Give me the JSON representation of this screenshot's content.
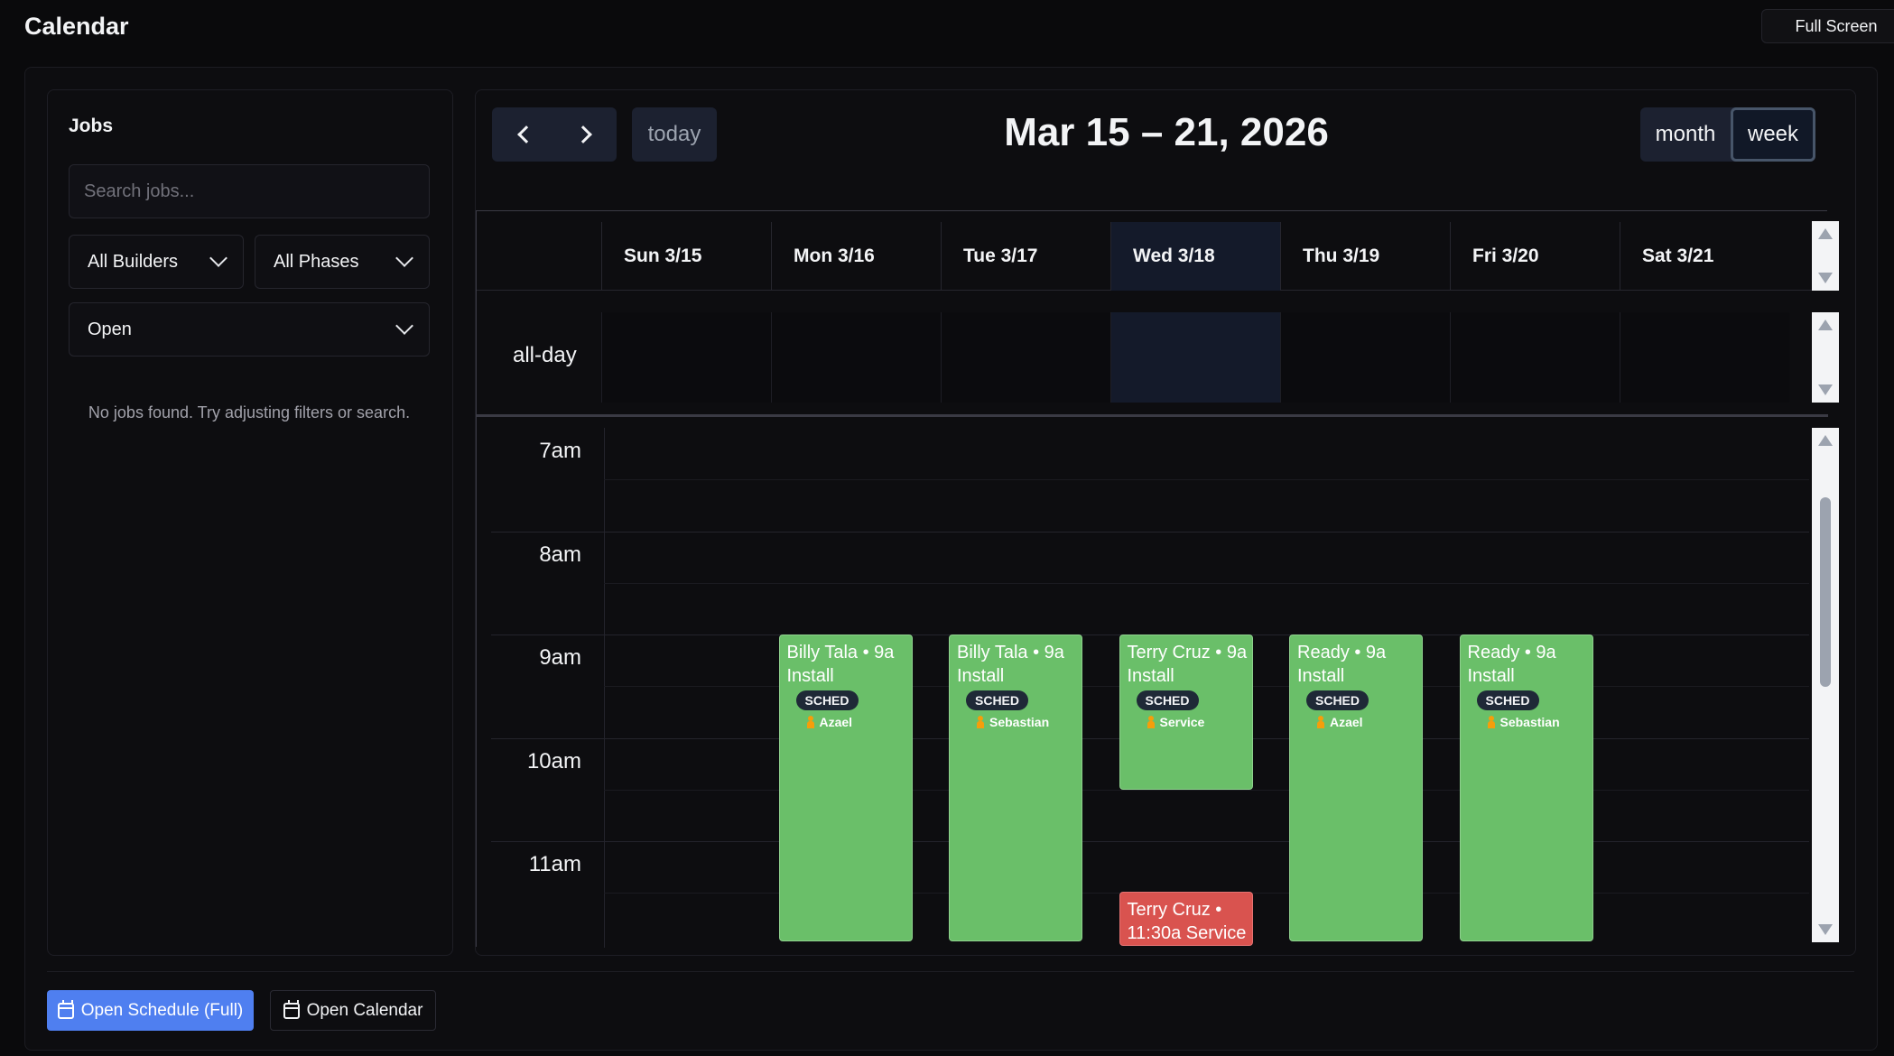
{
  "app": {
    "title": "Calendar",
    "fullscreen_label": "Full Screen"
  },
  "jobs": {
    "title": "Jobs",
    "search_placeholder": "Search jobs...",
    "builder_filter": "All Builders",
    "phase_filter": "All Phases",
    "status_filter": "Open",
    "empty_message": "No jobs found. Try adjusting filters or search."
  },
  "calendar": {
    "range_title": "Mar 15 – 21, 2026",
    "today_label": "today",
    "view_month": "month",
    "view_week": "week",
    "allday_label": "all-day",
    "days": [
      "Sun 3/15",
      "Mon 3/16",
      "Tue 3/17",
      "Wed 3/18",
      "Thu 3/19",
      "Fri 3/20",
      "Sat 3/21"
    ],
    "today_index": 3,
    "hours": [
      "7am",
      "8am",
      "9am",
      "10am",
      "11am"
    ],
    "events": [
      {
        "day": 1,
        "title": "Billy Tala • 9a",
        "subtitle": "Install",
        "badge": "SCHED",
        "assignee": "Azael",
        "color": "#6abf69"
      },
      {
        "day": 2,
        "title": "Billy Tala • 9a",
        "subtitle": "Install",
        "badge": "SCHED",
        "assignee": "Sebastian",
        "color": "#6abf69"
      },
      {
        "day": 3,
        "title": "Terry Cruz • 9a",
        "subtitle": "Install",
        "badge": "SCHED",
        "assignee": "Service",
        "color": "#6abf69"
      },
      {
        "day": 4,
        "title": "Ready • 9a",
        "subtitle": "Install",
        "badge": "SCHED",
        "assignee": "Azael",
        "color": "#6abf69"
      },
      {
        "day": 5,
        "title": "Ready • 9a",
        "subtitle": "Install",
        "badge": "SCHED",
        "assignee": "Sebastian",
        "color": "#6abf69"
      },
      {
        "day": 3,
        "title": "Terry Cruz •",
        "subtitle": "11:30a Service",
        "color": "#d9534f"
      }
    ]
  },
  "footer": {
    "open_schedule_label": "Open Schedule (Full)",
    "open_calendar_label": "Open Calendar"
  }
}
